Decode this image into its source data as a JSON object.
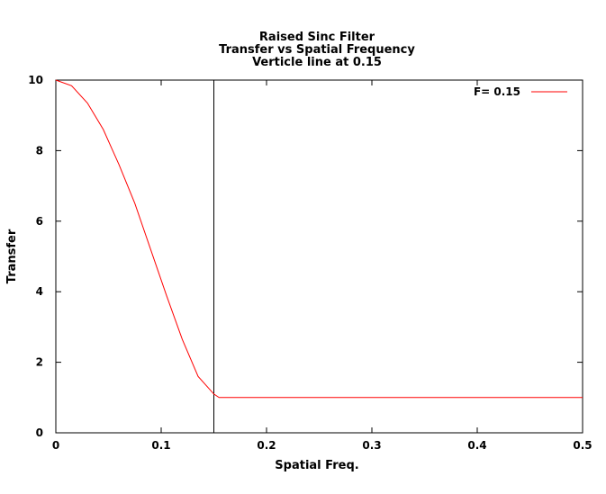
{
  "chart_data": {
    "type": "line",
    "title_lines": [
      "Raised Sinc Filter",
      "Transfer vs Spatial Frequency",
      "Verticle line at 0.15"
    ],
    "xlabel": "Spatial Freq.",
    "ylabel": "Transfer",
    "xlim": [
      0,
      0.5
    ],
    "ylim": [
      0,
      10
    ],
    "xticks": [
      0,
      0.1,
      0.2,
      0.3,
      0.4,
      0.5
    ],
    "xtick_labels": [
      "0",
      "0.1",
      "0.2",
      "0.3",
      "0.4",
      "0.5"
    ],
    "yticks": [
      0,
      2,
      4,
      6,
      8,
      10
    ],
    "ytick_labels": [
      "0",
      "2",
      "4",
      "6",
      "8",
      "10"
    ],
    "grid": false,
    "legend_position": "top-right",
    "series": [
      {
        "name": "F= 0.15",
        "color": "#ff0000",
        "x": [
          0,
          0.015,
          0.03,
          0.045,
          0.06,
          0.075,
          0.09,
          0.105,
          0.12,
          0.135,
          0.15,
          0.155,
          0.2,
          0.3,
          0.4,
          0.5
        ],
        "y": [
          10,
          9.84,
          9.35,
          8.6,
          7.6,
          6.5,
          5.2,
          3.9,
          2.65,
          1.6,
          1.1,
          1.0,
          1.0,
          1.0,
          1.0,
          1.0
        ]
      }
    ],
    "vertical_line": {
      "x": 0.15,
      "color": "#000000"
    }
  }
}
